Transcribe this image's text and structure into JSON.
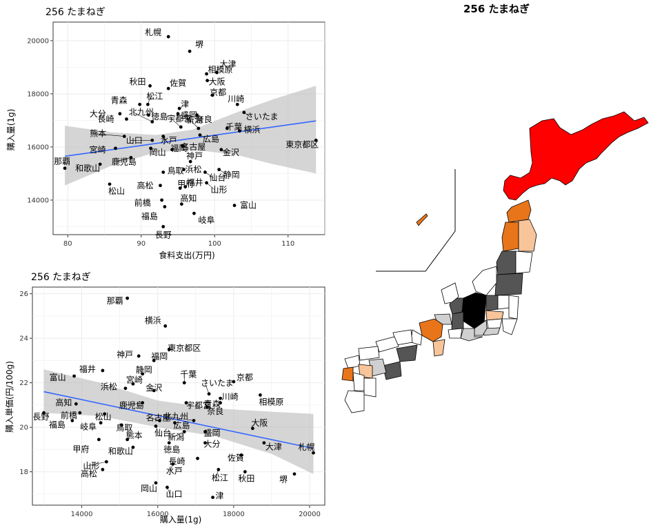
{
  "map": {
    "title": "256 たまねぎ"
  },
  "chart_data": [
    {
      "type": "scatter",
      "title": "256 たまねぎ",
      "xlabel": "食料支出(万円)",
      "ylabel": "購入量(1g)",
      "xlim": [
        78,
        115
      ],
      "ylim": [
        12700,
        20700
      ],
      "xticks": [
        80,
        90,
        100,
        110
      ],
      "yticks": [
        14000,
        16000,
        18000,
        20000
      ],
      "grid": true,
      "trend": {
        "x0": 79.6,
        "y0": 15650,
        "x1": 113.8,
        "y1": 16980
      },
      "ribbon": {
        "upper": [
          [
            79.6,
            16800
          ],
          [
            86,
            16550
          ],
          [
            92,
            16450
          ],
          [
            97,
            16650
          ],
          [
            103,
            17300
          ],
          [
            108,
            17800
          ],
          [
            113.8,
            18300
          ]
        ],
        "lower": [
          [
            79.6,
            14550
          ],
          [
            86,
            15300
          ],
          [
            92,
            15800
          ],
          [
            97,
            15900
          ],
          [
            103,
            15700
          ],
          [
            108,
            15350
          ],
          [
            113.8,
            15000
          ]
        ]
      },
      "points": [
        {
          "label": "札幌",
          "x": 93.7,
          "y": 20150
        },
        {
          "label": "堺",
          "x": 96.6,
          "y": 19600
        },
        {
          "label": "相模原",
          "x": 98.9,
          "y": 18750
        },
        {
          "label": "大津",
          "x": 100.3,
          "y": 18800
        },
        {
          "label": "大阪",
          "x": 99.0,
          "y": 18500
        },
        {
          "label": "秋田",
          "x": 91.2,
          "y": 18300
        },
        {
          "label": "佐賀",
          "x": 93.7,
          "y": 18200
        },
        {
          "label": "京都",
          "x": 99.7,
          "y": 17950
        },
        {
          "label": "川崎",
          "x": 103.1,
          "y": 17600
        },
        {
          "label": "青森",
          "x": 89.8,
          "y": 17600
        },
        {
          "label": "松江",
          "x": 90.9,
          "y": 17600
        },
        {
          "label": "津",
          "x": 95.2,
          "y": 17450
        },
        {
          "label": "大分",
          "x": 87.1,
          "y": 17250
        },
        {
          "label": "徳島",
          "x": 91.0,
          "y": 17200
        },
        {
          "label": "盛岡",
          "x": 95.0,
          "y": 17250
        },
        {
          "label": "奈良",
          "x": 97.6,
          "y": 17200
        },
        {
          "label": "さいたま",
          "x": 104.0,
          "y": 17300
        },
        {
          "label": "長崎",
          "x": 88.0,
          "y": 17050
        },
        {
          "label": "北九州",
          "x": 91.5,
          "y": 16950
        },
        {
          "label": "宇都宮",
          "x": 95.4,
          "y": 16750
        },
        {
          "label": "新潟",
          "x": 97.8,
          "y": 16700
        },
        {
          "label": "千葉",
          "x": 101.7,
          "y": 16700
        },
        {
          "label": "横浜",
          "x": 103.4,
          "y": 16600
        },
        {
          "label": "熊本",
          "x": 87.7,
          "y": 16400
        },
        {
          "label": "山口",
          "x": 91.5,
          "y": 16250
        },
        {
          "label": "水戸",
          "x": 93.0,
          "y": 16400
        },
        {
          "label": "広島",
          "x": 98.0,
          "y": 16450
        },
        {
          "label": "東京都区",
          "x": 113.8,
          "y": 16250
        },
        {
          "label": "宮崎",
          "x": 86.5,
          "y": 15950
        },
        {
          "label": "岡山",
          "x": 91.3,
          "y": 15950
        },
        {
          "label": "福岡",
          "x": 94.2,
          "y": 15900
        },
        {
          "label": "名古屋",
          "x": 95.6,
          "y": 16050
        },
        {
          "label": "金沢",
          "x": 100.9,
          "y": 15900
        },
        {
          "label": "那覇",
          "x": 79.6,
          "y": 15200
        },
        {
          "label": "和歌山",
          "x": 84.4,
          "y": 15350
        },
        {
          "label": "鹿児島",
          "x": 88.6,
          "y": 15600
        },
        {
          "label": "神戸",
          "x": 96.7,
          "y": 15450
        },
        {
          "label": "鳥取",
          "x": 93.0,
          "y": 15050
        },
        {
          "label": "浜松",
          "x": 95.8,
          "y": 15150
        },
        {
          "label": "仙台",
          "x": 98.7,
          "y": 15050
        },
        {
          "label": "静岡",
          "x": 100.6,
          "y": 15150
        },
        {
          "label": "松山",
          "x": 85.7,
          "y": 14600
        },
        {
          "label": "高松",
          "x": 92.6,
          "y": 14550
        },
        {
          "label": "甲府",
          "x": 95.3,
          "y": 14450
        },
        {
          "label": "福井",
          "x": 96.0,
          "y": 14500
        },
        {
          "label": "山形",
          "x": 98.9,
          "y": 14650
        },
        {
          "label": "前橋",
          "x": 92.8,
          "y": 14000
        },
        {
          "label": "高知",
          "x": 95.5,
          "y": 13850
        },
        {
          "label": "富山",
          "x": 102.7,
          "y": 13800
        },
        {
          "label": "福島",
          "x": 93.2,
          "y": 13750
        },
        {
          "label": "岐阜",
          "x": 97.2,
          "y": 13500
        },
        {
          "label": "長野",
          "x": 93.0,
          "y": 13000
        }
      ]
    },
    {
      "type": "scatter",
      "title": "256 たまねぎ",
      "xlabel": "購入量(1g)",
      "ylabel": "購入単価(円/100g)",
      "xlim": [
        12700,
        20400
      ],
      "ylim": [
        16.5,
        26.3
      ],
      "xticks": [
        14000,
        16000,
        18000,
        20000
      ],
      "yticks": [
        18,
        20,
        22,
        24,
        26
      ],
      "grid": true,
      "trend": {
        "x0": 13000,
        "y0": 21.6,
        "x1": 20100,
        "y1": 19.05
      },
      "ribbon": {
        "upper": [
          [
            13000,
            22.6
          ],
          [
            14500,
            22.0
          ],
          [
            16000,
            21.2
          ],
          [
            17500,
            20.85
          ],
          [
            19000,
            20.7
          ],
          [
            20100,
            20.6
          ]
        ],
        "lower": [
          [
            13000,
            20.65
          ],
          [
            14500,
            20.5
          ],
          [
            16000,
            20.0
          ],
          [
            17500,
            19.6
          ],
          [
            19000,
            18.8
          ],
          [
            20100,
            17.9
          ]
        ]
      },
      "points": [
        {
          "label": "那覇",
          "x": 15200,
          "y": 25.8
        },
        {
          "label": "横浜",
          "x": 16200,
          "y": 24.55
        },
        {
          "label": "東京都区",
          "x": 16300,
          "y": 23.5
        },
        {
          "label": "神戸",
          "x": 15500,
          "y": 23.2
        },
        {
          "label": "福岡",
          "x": 15900,
          "y": 23.0
        },
        {
          "label": "福井",
          "x": 14550,
          "y": 22.55
        },
        {
          "label": "静岡",
          "x": 15600,
          "y": 22.4
        },
        {
          "label": "千葉",
          "x": 16700,
          "y": 22.0
        },
        {
          "label": "京都",
          "x": 18000,
          "y": 22.05
        },
        {
          "label": "富山",
          "x": 13800,
          "y": 22.3
        },
        {
          "label": "宮崎",
          "x": 15350,
          "y": 21.95
        },
        {
          "label": "金沢",
          "x": 15900,
          "y": 21.65
        },
        {
          "label": "さいたま",
          "x": 17350,
          "y": 21.5
        },
        {
          "label": "浜松",
          "x": 15150,
          "y": 21.75
        },
        {
          "label": "川崎",
          "x": 17650,
          "y": 21.3
        },
        {
          "label": "相模原",
          "x": 18700,
          "y": 21.45
        },
        {
          "label": "長野",
          "x": 13000,
          "y": 20.65
        },
        {
          "label": "高知",
          "x": 13850,
          "y": 21.05
        },
        {
          "label": "鹿児島",
          "x": 15600,
          "y": 21.1
        },
        {
          "label": "宇都宮",
          "x": 16750,
          "y": 21.1
        },
        {
          "label": "青森",
          "x": 17650,
          "y": 21.1
        },
        {
          "label": "奈良",
          "x": 17300,
          "y": 20.9
        },
        {
          "label": "前橋",
          "x": 13950,
          "y": 20.65
        },
        {
          "label": "松山",
          "x": 14600,
          "y": 20.6
        },
        {
          "label": "名古屋",
          "x": 16050,
          "y": 20.3
        },
        {
          "label": "北九州",
          "x": 16950,
          "y": 20.3
        },
        {
          "label": "広島",
          "x": 16450,
          "y": 20.2
        },
        {
          "label": "福島",
          "x": 13750,
          "y": 20.3
        },
        {
          "label": "岐阜",
          "x": 14500,
          "y": 20.2
        },
        {
          "label": "鳥取",
          "x": 15050,
          "y": 20.1
        },
        {
          "label": "大阪",
          "x": 18500,
          "y": 19.95
        },
        {
          "label": "仙台",
          "x": 15950,
          "y": 20.05
        },
        {
          "label": "新潟",
          "x": 16700,
          "y": 19.8
        },
        {
          "label": "盛岡",
          "x": 17250,
          "y": 19.8
        },
        {
          "label": "甲府",
          "x": 14450,
          "y": 19.45
        },
        {
          "label": "熊本",
          "x": 15200,
          "y": 19.45
        },
        {
          "label": "和歌山",
          "x": 15350,
          "y": 19.1
        },
        {
          "label": "大分",
          "x": 17250,
          "y": 19.3
        },
        {
          "label": "徳島",
          "x": 16300,
          "y": 19.3
        },
        {
          "label": "大津",
          "x": 18800,
          "y": 19.3
        },
        {
          "label": "札幌",
          "x": 20100,
          "y": 18.85
        },
        {
          "label": "長崎",
          "x": 17050,
          "y": 18.6
        },
        {
          "label": "佐賀",
          "x": 18200,
          "y": 18.75
        },
        {
          "label": "山形",
          "x": 14650,
          "y": 18.45
        },
        {
          "label": "水戸",
          "x": 16400,
          "y": 18.35
        },
        {
          "label": "高松",
          "x": 14550,
          "y": 18.1
        },
        {
          "label": "松江",
          "x": 17600,
          "y": 18.1
        },
        {
          "label": "秋田",
          "x": 18300,
          "y": 18.0
        },
        {
          "label": "岡山",
          "x": 15950,
          "y": 17.5
        },
        {
          "label": "山口",
          "x": 16250,
          "y": 17.3
        },
        {
          "label": "堺",
          "x": 19600,
          "y": 17.9
        },
        {
          "label": "津",
          "x": 17450,
          "y": 16.85
        }
      ]
    }
  ]
}
